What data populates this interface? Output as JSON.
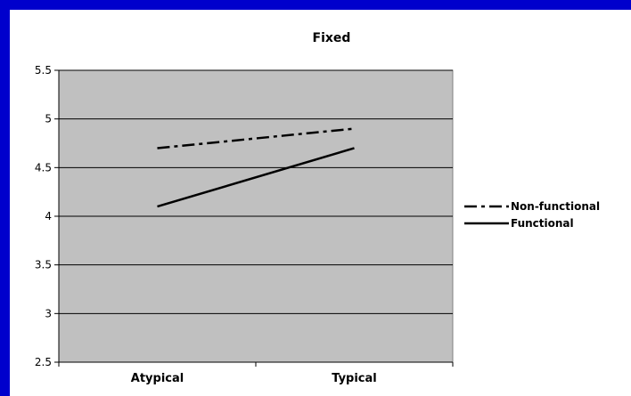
{
  "chart_data": {
    "type": "line",
    "title": "Fixed",
    "categories": [
      "Atypical",
      "Typical"
    ],
    "ylim": [
      2.5,
      5.5
    ],
    "yticks": [
      "2.5",
      "3",
      "3.5",
      "4",
      "4.5",
      "5",
      "5.5"
    ],
    "grid": true,
    "legend_position": "right",
    "plot_background": "#c0c0c0",
    "series": [
      {
        "name": "Non-functional",
        "values": [
          4.7,
          4.9
        ],
        "style": "dashed",
        "color": "#000000"
      },
      {
        "name": "Functional",
        "values": [
          4.1,
          4.7
        ],
        "style": "solid",
        "color": "#000000"
      }
    ]
  }
}
